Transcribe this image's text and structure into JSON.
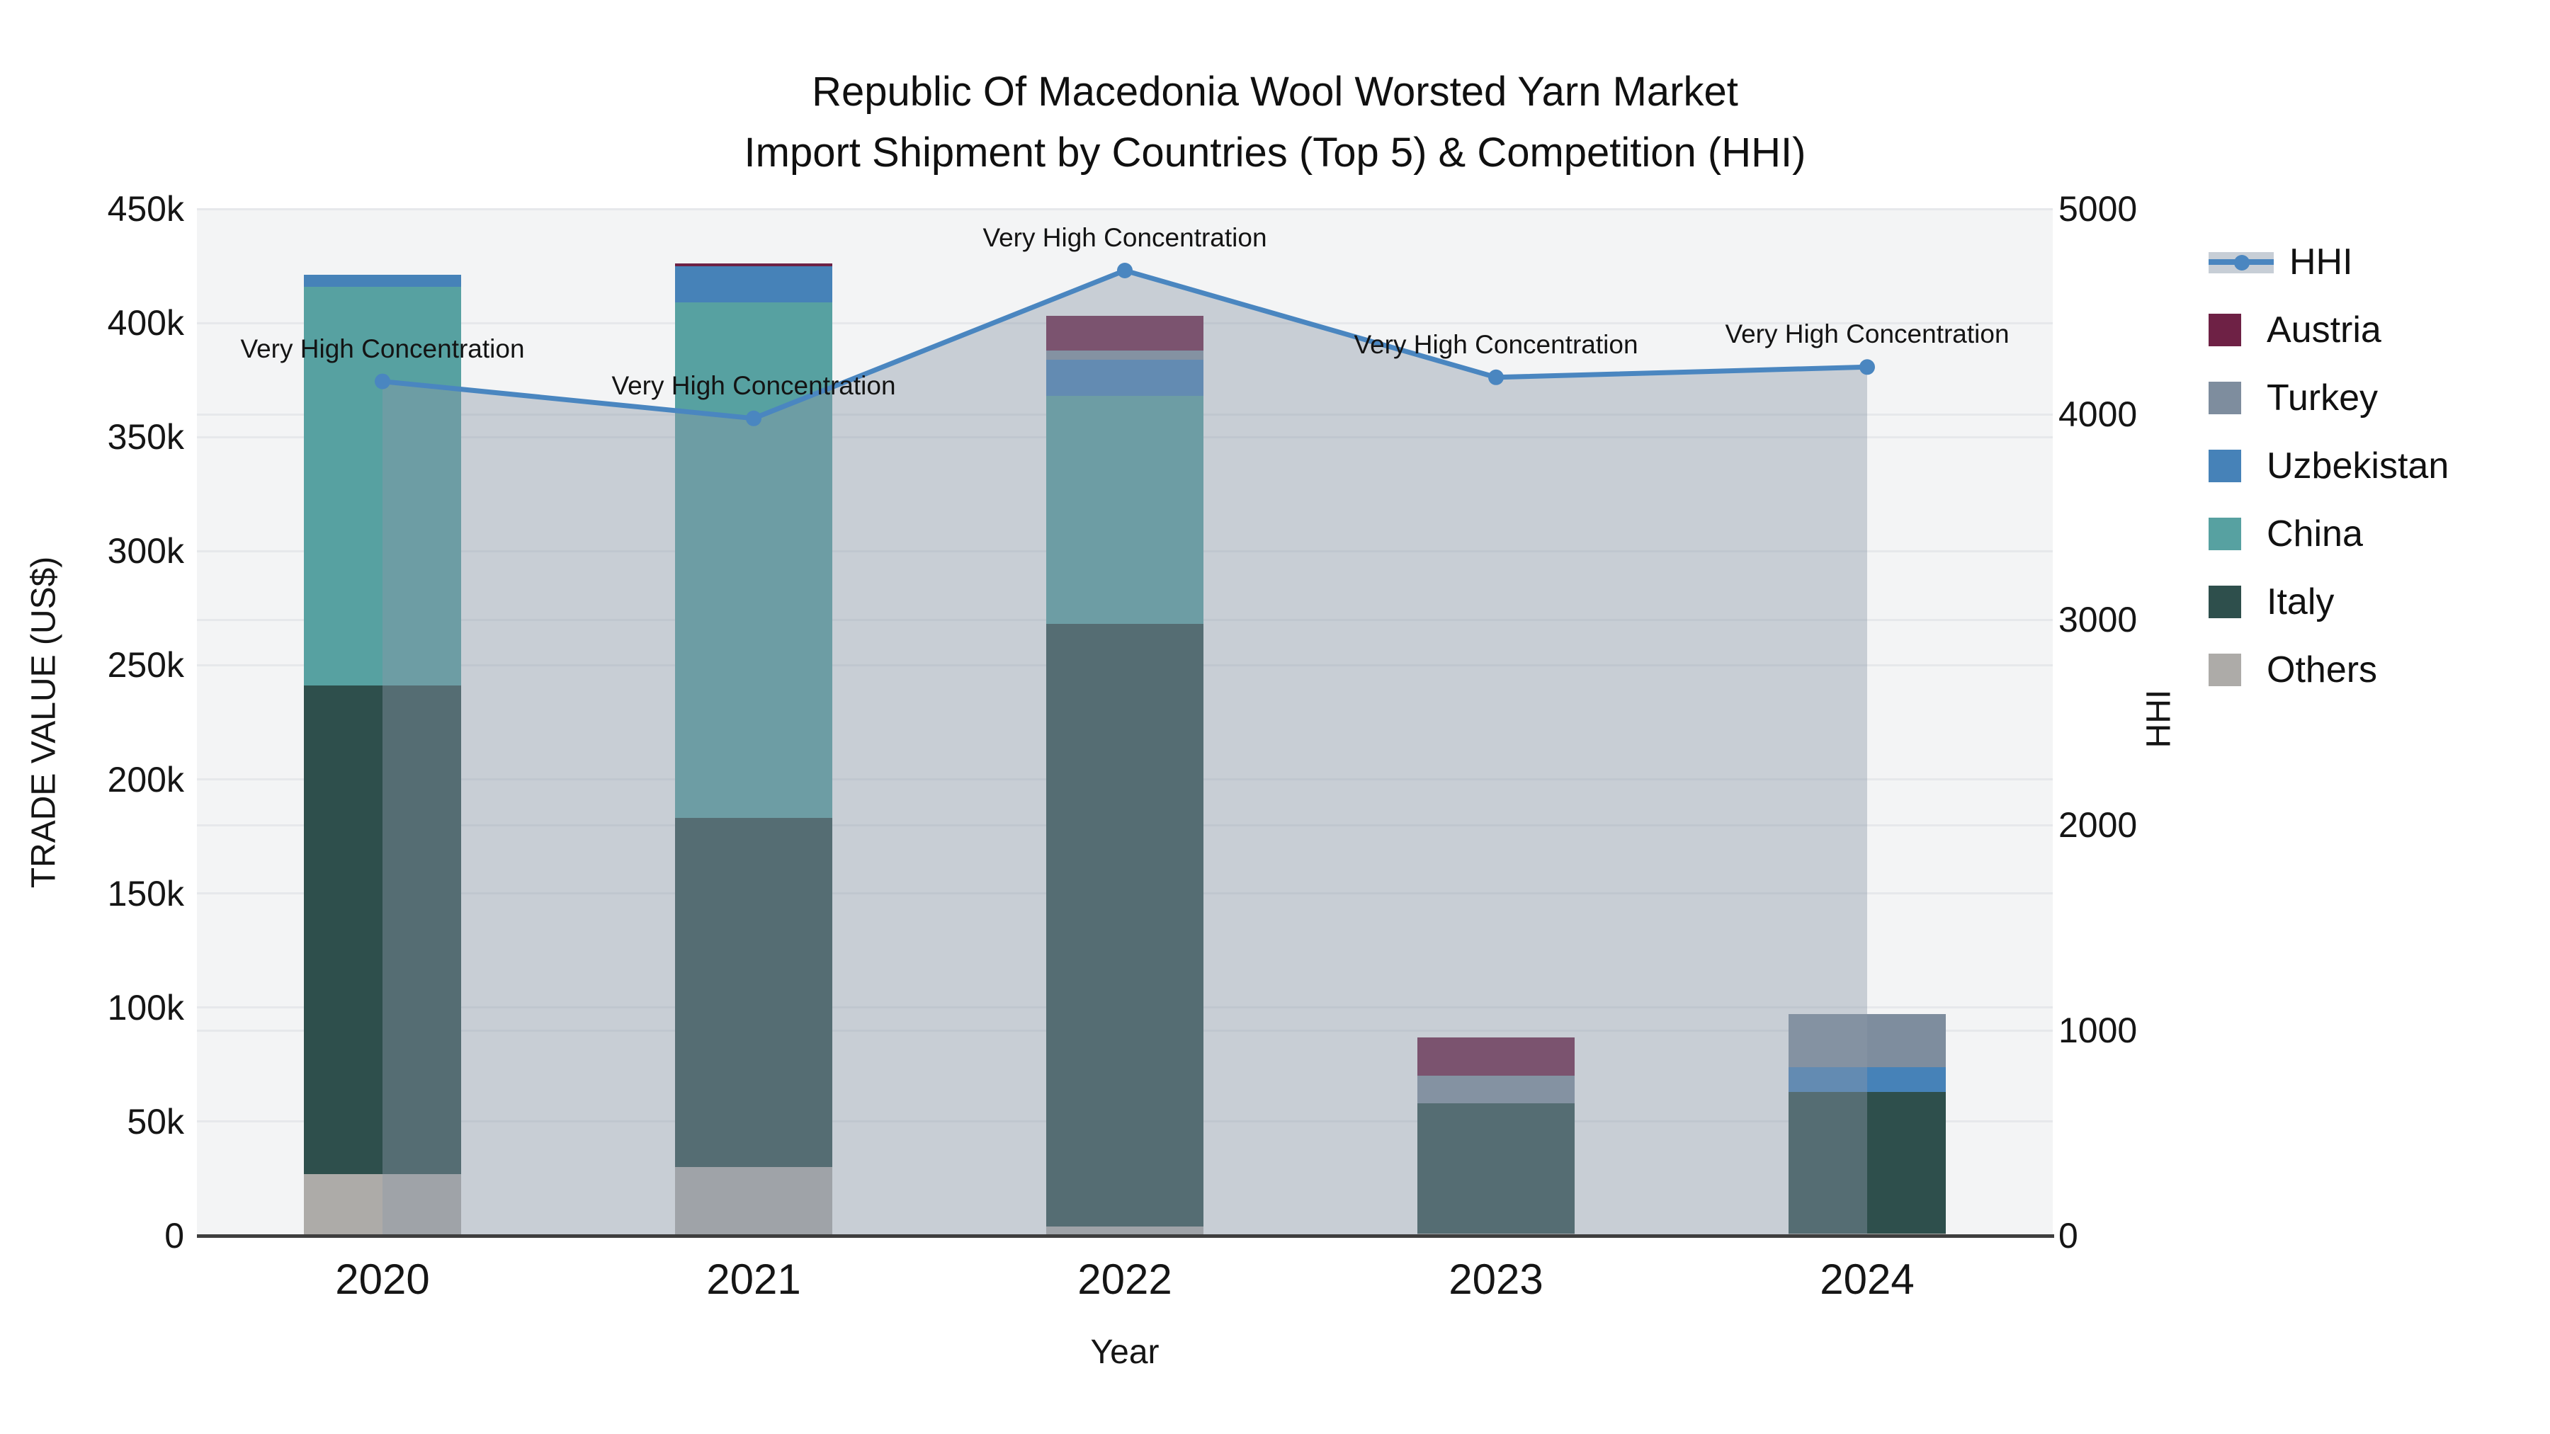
{
  "title": {
    "line1": "Republic Of Macedonia Wool Worsted Yarn Market",
    "line2": "Import Shipment by Countries (Top 5) & Competition (HHI)"
  },
  "axes": {
    "x": {
      "label": "Year",
      "ticks": [
        "2020",
        "2021",
        "2022",
        "2023",
        "2024"
      ]
    },
    "y": {
      "label": "TRADE VALUE (US$)",
      "ticks": [
        "0",
        "50k",
        "100k",
        "150k",
        "200k",
        "250k",
        "300k",
        "350k",
        "400k",
        "450k"
      ]
    },
    "y2": {
      "label": "HHI",
      "ticks": [
        "0",
        "1000",
        "2000",
        "3000",
        "4000",
        "5000"
      ]
    }
  },
  "colors": {
    "plot_background": "#f3f4f5",
    "gridline": "#e6e8eb",
    "axis_line": "#3e3e3e",
    "hhi_line": "#4a86c0",
    "hhi_area": "rgba(140,152,170,0.42)",
    "legend_band": "#c7ced6"
  },
  "legend": [
    {
      "label": "HHI",
      "type": "line",
      "color": "#4a86c0",
      "band": "#c7ced6"
    },
    {
      "label": "Austria",
      "type": "square",
      "color": "#6e2145"
    },
    {
      "label": "Turkey",
      "type": "square",
      "color": "#7e8d9e"
    },
    {
      "label": "Uzbekistan",
      "type": "square",
      "color": "#4682b8"
    },
    {
      "label": "China",
      "type": "square",
      "color": "#57a1a1"
    },
    {
      "label": "Italy",
      "type": "square",
      "color": "#2e4f4c"
    },
    {
      "label": "Others",
      "type": "square",
      "color": "#adaba8"
    }
  ],
  "chart_data": {
    "type": "combo: stacked bar (left axis) + line with filled area (right axis)",
    "title": "Republic Of Macedonia Wool Worsted Yarn Market Import Shipment by Countries (Top 5) & Competition (HHI)",
    "xlabel": "Year",
    "ylabel": "TRADE VALUE (US$)",
    "y2label": "HHI",
    "categories": [
      "2020",
      "2021",
      "2022",
      "2023",
      "2024"
    ],
    "ylim": [
      0,
      450000
    ],
    "y2lim": [
      0,
      5000
    ],
    "grid": true,
    "legend_position": "right",
    "stack_order": [
      "Others",
      "Italy",
      "China",
      "Uzbekistan",
      "Turkey",
      "Austria"
    ],
    "series": [
      {
        "name": "Austria",
        "color": "#6e2145",
        "values": [
          0,
          1200,
          15000,
          17000,
          0
        ]
      },
      {
        "name": "Turkey",
        "color": "#7e8d9e",
        "values": [
          0,
          0,
          4000,
          12000,
          23000
        ]
      },
      {
        "name": "Uzbekistan",
        "color": "#4682b8",
        "values": [
          5000,
          16000,
          16000,
          0,
          11000
        ]
      },
      {
        "name": "China",
        "color": "#57a1a1",
        "values": [
          175000,
          226000,
          100000,
          0,
          0
        ]
      },
      {
        "name": "Italy",
        "color": "#2e4f4c",
        "values": [
          214000,
          153000,
          264000,
          57000,
          62000
        ]
      },
      {
        "name": "Others",
        "color": "#adaba8",
        "values": [
          27000,
          30000,
          4000,
          1000,
          1000
        ]
      }
    ],
    "bar_totals": [
      421000,
      426200,
      403000,
      87000,
      97000
    ],
    "line_series": {
      "name": "HHI",
      "axis": "y2",
      "color": "#4a86c0",
      "area_color": "rgba(140,152,170,0.42)",
      "values": [
        4160,
        3980,
        4700,
        4180,
        4230
      ]
    },
    "annotations": [
      {
        "x": "2020",
        "text": "Very High Concentration"
      },
      {
        "x": "2021",
        "text": "Very High Concentration"
      },
      {
        "x": "2022",
        "text": "Very High Concentration"
      },
      {
        "x": "2023",
        "text": "Very High Concentration"
      },
      {
        "x": "2024",
        "text": "Very High Concentration"
      }
    ]
  }
}
